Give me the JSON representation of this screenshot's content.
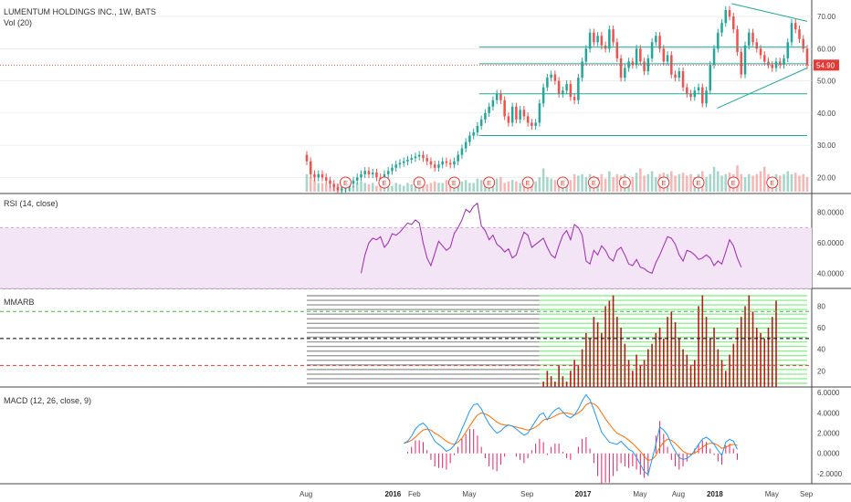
{
  "header": {
    "symbol_title": "LUMENTUM HOLDINGS INC., 1W, BATS",
    "volume_label": "Vol (20)"
  },
  "colors": {
    "up": "#26a69a",
    "down": "#ef5350",
    "price_line": "#e53935",
    "rsi_line": "#9c27b0",
    "rsi_band": "#f3e5f5",
    "macd_line": "#2196f3",
    "signal_line": "#ff6d00",
    "hist": "#e91e63",
    "mmarb_gray": "#9e9e9e",
    "mmarb_green": "#8ff08f",
    "mmarb_red": "#b71c1c",
    "pane_border": "#000000",
    "grid": "#e0e0e0",
    "earnings": "#e53935"
  },
  "chart_data": [
    {
      "pane": "price",
      "type": "candlestick",
      "ylim": [
        15,
        74
      ],
      "y_ticks": [
        20,
        30,
        40,
        50,
        60,
        70
      ],
      "y_tick_labels": [
        "20.00",
        "30.00",
        "40.00",
        "50.00",
        "60.00",
        "70.00"
      ],
      "last_price": 54.9,
      "last_price_label": "54.90",
      "closes": [
        25,
        21,
        20,
        21,
        20,
        19,
        18,
        17,
        16,
        16.5,
        17,
        18,
        19,
        20,
        21,
        22,
        21,
        21.5,
        20,
        19,
        21,
        22,
        23,
        24,
        24.5,
        25,
        25.5,
        26,
        26.5,
        27,
        26,
        25,
        24,
        23,
        24,
        25,
        24.5,
        24,
        25,
        27,
        29,
        31,
        33,
        34,
        36,
        38,
        40,
        42,
        44,
        46,
        44,
        39,
        37,
        42,
        38,
        41,
        39,
        37,
        36,
        37,
        43,
        48,
        51,
        52,
        50,
        46,
        47,
        49,
        45,
        44,
        51,
        56,
        60,
        65,
        62,
        64,
        61,
        60,
        66,
        62,
        57,
        51,
        54,
        56,
        55,
        60,
        56,
        53,
        57,
        62,
        64,
        60,
        56,
        58,
        52,
        51,
        53,
        48,
        46,
        45,
        47,
        48,
        43,
        47,
        55,
        60,
        65,
        68,
        72,
        70,
        66,
        59,
        52,
        61,
        65,
        62,
        60,
        58,
        56,
        55,
        54,
        56,
        55,
        57,
        62,
        68,
        66,
        63,
        60,
        54.9
      ],
      "trend_lines": [
        {
          "from": [
            0.6,
            60.5
          ],
          "to": [
            1.0,
            60.5
          ]
        },
        {
          "from": [
            0.6,
            55.3
          ],
          "to": [
            1.0,
            55.3
          ]
        },
        {
          "from": [
            0.6,
            46.0
          ],
          "to": [
            1.0,
            46.0
          ]
        },
        {
          "from": [
            0.6,
            33.0
          ],
          "to": [
            1.0,
            33.0
          ]
        },
        {
          "from": [
            0.849,
            74.0
          ],
          "to": [
            1.0,
            68.5
          ]
        },
        {
          "from": [
            0.82,
            41.5
          ],
          "to": [
            1.0,
            54.0
          ]
        }
      ],
      "earnings_markers_x": [
        10,
        20,
        29,
        38,
        47,
        57,
        66,
        74,
        82,
        92,
        101,
        110,
        120
      ],
      "earnings_label": "E"
    },
    {
      "pane": "volume",
      "type": "bar",
      "title": "Vol (20)",
      "relative_values": [
        0.6,
        0.5,
        0.4,
        0.3,
        0.3,
        0.25,
        0.2,
        0.2,
        0.25,
        0.2,
        0.3,
        0.25,
        0.2,
        0.3,
        0.35,
        0.3,
        0.25,
        0.3,
        0.2,
        0.35,
        0.25,
        0.3,
        0.2,
        0.3,
        0.25,
        0.2,
        0.3,
        0.25,
        0.2,
        0.35,
        0.3,
        0.25,
        0.3,
        0.35,
        0.3,
        0.3,
        0.4,
        0.3,
        0.3,
        0.45,
        0.35,
        0.4,
        0.3,
        0.3,
        0.45,
        0.4,
        0.3,
        0.35,
        0.4,
        0.45,
        0.5,
        0.3,
        0.35,
        0.4,
        0.35,
        0.3,
        0.35,
        0.3,
        0.4,
        0.35,
        0.5,
        0.8,
        0.5,
        0.45,
        0.4,
        0.4,
        0.5,
        0.35,
        0.4,
        0.6,
        0.55,
        0.6,
        0.5,
        0.6,
        0.55,
        0.5,
        0.6,
        0.45,
        0.7,
        0.5,
        0.6,
        0.55,
        0.6,
        0.45,
        0.5,
        0.65,
        0.8,
        0.55,
        0.6,
        0.7,
        0.5,
        0.6,
        0.65,
        0.6,
        0.7,
        0.55,
        0.6,
        0.65,
        0.55,
        0.6,
        0.5,
        0.6,
        0.7,
        0.5,
        0.6,
        0.85,
        0.7,
        0.55,
        0.6,
        0.65,
        0.6,
        0.9,
        0.6,
        0.5,
        0.6,
        0.55,
        0.6,
        0.7,
        0.85,
        0.6,
        0.5,
        0.6,
        0.55,
        0.6,
        0.7,
        0.6,
        0.65,
        0.55,
        0.6,
        0.5
      ]
    },
    {
      "pane": "rsi",
      "type": "line",
      "title": "RSI (14, close)",
      "ylim": [
        30,
        90
      ],
      "band": [
        30,
        70
      ],
      "y_ticks": [
        40,
        60,
        80
      ],
      "y_tick_labels": [
        "40.0000",
        "60.0000",
        "80.0000"
      ],
      "first_index": 14,
      "values": [
        40,
        52,
        60,
        63,
        62,
        64,
        57,
        60,
        66,
        65,
        67,
        70,
        73,
        72,
        75,
        73,
        60,
        50,
        45,
        53,
        61,
        58,
        55,
        57,
        66,
        70,
        75,
        82,
        80,
        84,
        86,
        71,
        68,
        62,
        65,
        59,
        57,
        54,
        56,
        50,
        52,
        60,
        67,
        65,
        57,
        59,
        61,
        63,
        57,
        52,
        50,
        58,
        65,
        68,
        62,
        72,
        70,
        65,
        48,
        46,
        55,
        52,
        58,
        55,
        50,
        48,
        55,
        57,
        52,
        46,
        45,
        49,
        44,
        43,
        41,
        40,
        47,
        52,
        58,
        64,
        63,
        59,
        52,
        48,
        55,
        54,
        52,
        49,
        50,
        52,
        50,
        45,
        48,
        46,
        54,
        62,
        58,
        50,
        44
      ]
    },
    {
      "pane": "mmarb",
      "type": "bar",
      "title": "MMARB",
      "ylim": [
        5,
        93
      ],
      "y_ticks": [
        20,
        40,
        60,
        80
      ],
      "y_tick_labels": [
        "20",
        "40",
        "60",
        "80"
      ],
      "ribbon_count": 20,
      "ribbons_start_x": 0,
      "green_start_x": 60,
      "level_lines": [
        {
          "value": 75,
          "color": "#4caf50"
        },
        {
          "value": 50,
          "color": "#000000"
        },
        {
          "value": 25,
          "color": "#e53935"
        }
      ],
      "red_bar_values": [
        5,
        10,
        20,
        15,
        10,
        25,
        15,
        10,
        20,
        30,
        25,
        40,
        55,
        50,
        70,
        65,
        55,
        80,
        85,
        90,
        70,
        60,
        45,
        30,
        20,
        35,
        25,
        30,
        40,
        45,
        55,
        60,
        50,
        70,
        75,
        65,
        50,
        40,
        35,
        25,
        30,
        80,
        90,
        70,
        50,
        60,
        40,
        30,
        20,
        35,
        45,
        60,
        70,
        80,
        90,
        75,
        60,
        55,
        50,
        60,
        70,
        85
      ]
    },
    {
      "pane": "macd",
      "type": "line",
      "title": "MACD (12, 26, close, 9)",
      "ylim": [
        -3,
        6.2
      ],
      "y_ticks": [
        -2,
        0,
        2,
        4,
        6
      ],
      "y_tick_labels": [
        "-2.0000",
        "0.0000",
        "2.0000",
        "4.0000",
        "6.0000"
      ],
      "first_index": 25,
      "macd": [
        1,
        1.2,
        1.7,
        2.4,
        2.8,
        3,
        2.6,
        1.9,
        1.2,
        0.9,
        0.6,
        0.2,
        0.4,
        0.8,
        1.5,
        2.4,
        3.3,
        4.2,
        4.8,
        4.9,
        4.4,
        3.6,
        2.9,
        2.4,
        2,
        2.2,
        2.6,
        2.8,
        2.7,
        2.4,
        2.1,
        1.8,
        2,
        2.6,
        3.2,
        3.8,
        4,
        3.3,
        3.9,
        4.3,
        4.5,
        4.1,
        3.7,
        3.5,
        3.8,
        4.4,
        5.2,
        5.8,
        5.3,
        4.3,
        3.2,
        2.1,
        1.6,
        1.1,
        1,
        0.9,
        1.2,
        0.8,
        0.4,
        0.2,
        -0.4,
        -1.1,
        -1.8,
        -2.1,
        -0.6,
        0.9,
        2.6,
        2.3,
        1.8,
        0.9,
        0.2,
        -0.4,
        -0.6,
        -0.5,
        -0.2,
        0.3,
        0.9,
        1.4,
        1.6,
        1.3,
        0.9,
        0.3,
        -0.2,
        1.1,
        1.4,
        1.2,
        0.4
      ],
      "signal": [
        1,
        1.1,
        1.3,
        1.6,
        2,
        2.3,
        2.4,
        2.3,
        2,
        1.8,
        1.5,
        1.2,
        1,
        0.9,
        1.1,
        1.5,
        2.1,
        2.7,
        3.3,
        3.8,
        4,
        3.9,
        3.7,
        3.4,
        3.1,
        2.9,
        2.8,
        2.8,
        2.7,
        2.6,
        2.5,
        2.4,
        2.3,
        2.4,
        2.6,
        2.9,
        3.3,
        3.4,
        3.5,
        3.7,
        3.9,
        4,
        4,
        3.9,
        3.8,
        4,
        4.3,
        4.8,
        5,
        4.9,
        4.6,
        4,
        3.4,
        2.9,
        2.4,
        2,
        1.8,
        1.6,
        1.3,
        1,
        0.6,
        0.2,
        -0.3,
        -0.7,
        -0.6,
        -0.2,
        0.6,
        1.1,
        1.4,
        1.3,
        1,
        0.6,
        0.2,
        0,
        -0.1,
        0,
        0.3,
        0.6,
        0.9,
        1,
        1,
        0.8,
        0.5,
        0.6,
        0.8,
        0.9,
        0.8
      ]
    }
  ],
  "x_axis": {
    "tick_labels": [
      "Aug",
      "2016",
      "Feb",
      "May",
      "Sep",
      "2017",
      "May",
      "Aug",
      "2018",
      "May",
      "Sep"
    ],
    "bold_labels": [
      "2016",
      "2017",
      "2018"
    ],
    "tick_bar_indices": [
      0,
      22,
      28,
      42,
      57,
      71,
      86,
      96,
      105,
      120,
      134
    ]
  }
}
